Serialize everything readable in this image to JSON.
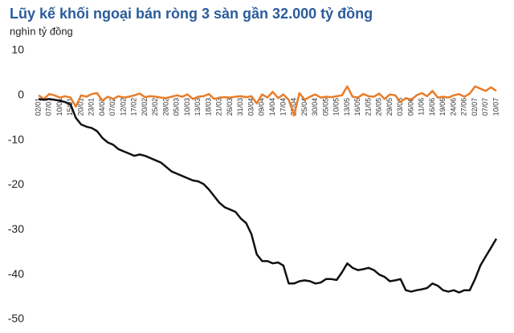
{
  "chart_data": {
    "type": "line",
    "title": "Lũy kế khối ngoại bán ròng 3 sàn gần 32.000 tỷ đồng",
    "subtitle": "nghìn tỷ đồng",
    "categories": [
      "02/01",
      null,
      "07/01",
      null,
      "10/01",
      null,
      "15/01",
      null,
      "20/01",
      null,
      "23/01",
      null,
      "04/02",
      null,
      "07/02",
      null,
      "12/02",
      null,
      "17/02",
      null,
      "20/02",
      null,
      "25/02",
      null,
      "28/02",
      null,
      "05/03",
      null,
      "10/03",
      null,
      "13/03",
      null,
      "18/03",
      null,
      "21/03",
      null,
      "26/03",
      null,
      "31/03",
      null,
      "03/04",
      null,
      "09/04",
      null,
      "14/04",
      null,
      "17/04",
      null,
      "22/04",
      null,
      "25/04",
      null,
      "30/04",
      null,
      "05/05",
      null,
      "10/05",
      null,
      "13/05",
      null,
      "16/05",
      null,
      "21/05",
      null,
      "26/05",
      null,
      "29/05",
      null,
      "03/06",
      null,
      "06/06",
      null,
      "11/06",
      null,
      "16/06",
      null,
      "19/06",
      null,
      "24/06",
      null,
      "27/06",
      null,
      "02/07",
      null,
      "07/07",
      null,
      "10/07"
    ],
    "series": [
      {
        "color": "#e87d2b",
        "values": [
          0,
          -0.8,
          0.3,
          0,
          -0.5,
          -0.2,
          -0.5,
          -2.5,
          0,
          -0.3,
          0.3,
          0.5,
          -1.2,
          -0.3,
          -0.8,
          -0.2,
          -0.5,
          -0.3,
          0,
          0.4,
          -0.4,
          -0.2,
          -0.3,
          -0.5,
          -0.6,
          -0.3,
          0,
          -0.3,
          0.2,
          -0.8,
          -0.3,
          -0.2,
          0.3,
          -0.8,
          -0.5,
          -0.4,
          -0.5,
          -0.3,
          -0.2,
          -0.4,
          -0.2,
          -1.8,
          0.2,
          -0.5,
          0.8,
          -0.6,
          0.2,
          -1,
          -4.5,
          0.5,
          -1,
          -0.3,
          0.2,
          -0.5,
          -0.3,
          -0.4,
          -0.2,
          0,
          2,
          -0.3,
          -0.5,
          0.3,
          -0.2,
          -0.3,
          0.4,
          -0.8,
          0.2,
          0,
          -1.5,
          -0.6,
          -1,
          0,
          0.5,
          -0.2,
          1,
          -0.5,
          -0.3,
          -0.5,
          0,
          0.3,
          -0.3,
          0.4,
          2,
          1.5,
          1,
          1.8,
          1
        ]
      },
      {
        "color": "#111111",
        "values": [
          -0.8,
          -1,
          -0.8,
          -1,
          -1.2,
          -1.5,
          -2,
          -5,
          -6.5,
          -7,
          -7.3,
          -8,
          -9.5,
          -10.5,
          -11,
          -12,
          -12.5,
          -13,
          -13.5,
          -13.2,
          -13.5,
          -14,
          -14.5,
          -15,
          -16,
          -17,
          -17.5,
          -18,
          -18.5,
          -19,
          -19.2,
          -19.8,
          -21,
          -22.5,
          -24,
          -25,
          -25.5,
          -26,
          -27.5,
          -28.5,
          -31,
          -35.5,
          -37,
          -37,
          -37.5,
          -37.3,
          -38,
          -42,
          -42,
          -41.5,
          -41.3,
          -41.5,
          -42,
          -41.8,
          -41,
          -41,
          -41.2,
          -39.5,
          -37.5,
          -38.5,
          -39,
          -38.8,
          -38.5,
          -39,
          -40,
          -40.5,
          -41.5,
          -41.3,
          -41,
          -43.5,
          -43.8,
          -43.5,
          -43.3,
          -43,
          -42,
          -42.5,
          -43.5,
          -43.8,
          -43.5,
          -44,
          -43.5,
          -43.5,
          -41,
          -38,
          -36,
          -34,
          -32
        ]
      }
    ],
    "ylim": [
      -50,
      10
    ],
    "yticks": [
      -50,
      -40,
      -30,
      -20,
      -10,
      0,
      10
    ]
  }
}
